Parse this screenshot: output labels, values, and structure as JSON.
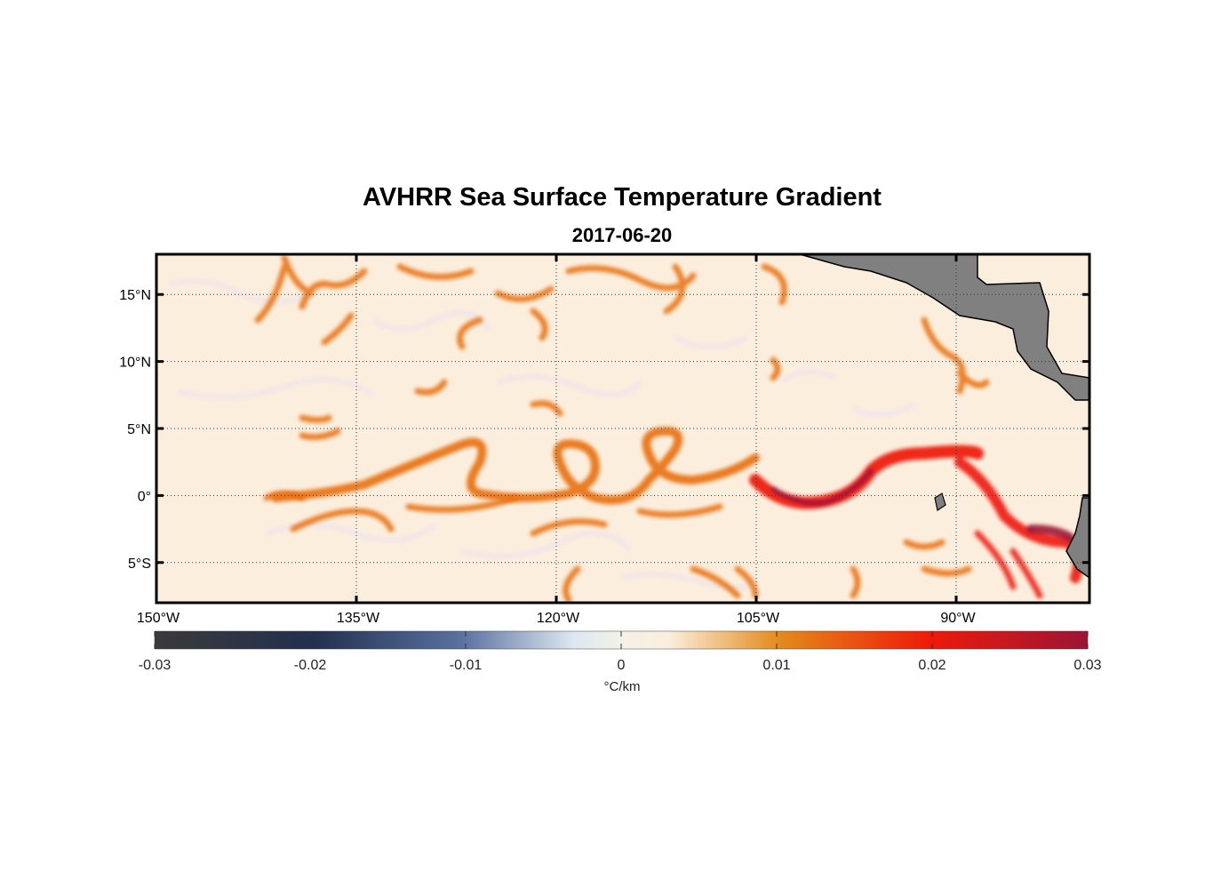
{
  "title": "AVHRR Sea Surface Temperature Gradient",
  "subtitle": "2017-06-20",
  "map": {
    "lon_range_deg_west": [
      150,
      80
    ],
    "lat_range": [
      -8,
      18
    ],
    "lon_ticks": [
      {
        "value": -150,
        "label": "150°W"
      },
      {
        "value": -135,
        "label": "135°W"
      },
      {
        "value": -120,
        "label": "120°W"
      },
      {
        "value": -105,
        "label": "105°W"
      },
      {
        "value": -90,
        "label": "90°W"
      }
    ],
    "lat_ticks": [
      {
        "value": 15,
        "label": "15°N"
      },
      {
        "value": 10,
        "label": "10°N"
      },
      {
        "value": 5,
        "label": "5°N"
      },
      {
        "value": 0,
        "label": "0°"
      },
      {
        "value": -5,
        "label": "5°S"
      }
    ],
    "grid": "dotted",
    "land_color": "#808080",
    "ocean_background": "#fbeedd"
  },
  "colorbar": {
    "unit": "°C/km",
    "range": [
      -0.03,
      0.03
    ],
    "ticks": [
      "-0.03",
      "-0.02",
      "-0.01",
      "0",
      "0.01",
      "0.02",
      "0.03"
    ],
    "colors": [
      "#3a3a3a",
      "#22304f",
      "#5a72a0",
      "#dde8f0",
      "#fbeedd",
      "#e38a1a",
      "#ee1a0a",
      "#9b1535"
    ]
  }
}
